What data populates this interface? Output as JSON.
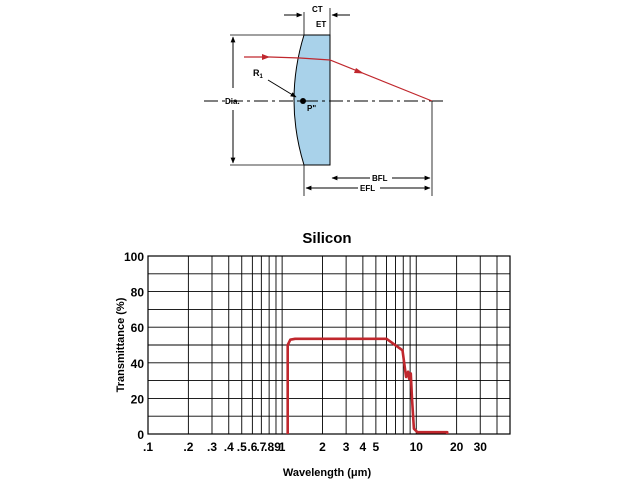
{
  "lens_diagram": {
    "labels": {
      "ct": "CT",
      "et": "ET",
      "r1": "R",
      "r1_sub": "1",
      "dia": "Dia.",
      "principal_point": "P\"",
      "bfl": "BFL",
      "efl": "EFL"
    },
    "colors": {
      "lens_fill": "#a9d2ea",
      "ray": "#c0272d",
      "line": "#000000"
    }
  },
  "chart_data": {
    "type": "line",
    "title": "Silicon",
    "xlabel": "Wavelength (μm)",
    "ylabel": "Transmittance (%)",
    "x_scale": "log",
    "xlim": [
      0.1,
      50
    ],
    "ylim": [
      0,
      100
    ],
    "x_tick_labels": [
      {
        "value": 0.1,
        "label": ".1"
      },
      {
        "value": 0.2,
        "label": ".2"
      },
      {
        "value": 0.3,
        "label": ".3"
      },
      {
        "value": 0.4,
        "label": ".4"
      },
      {
        "value": 0.5,
        "label": ".5"
      },
      {
        "value": 0.6,
        "label": ".6"
      },
      {
        "value": 0.7,
        "label": ".7"
      },
      {
        "value": 0.8,
        "label": ".8"
      },
      {
        "value": 0.9,
        "label": ".9"
      },
      {
        "value": 1,
        "label": "1"
      },
      {
        "value": 2,
        "label": "2"
      },
      {
        "value": 3,
        "label": "3"
      },
      {
        "value": 4,
        "label": "4"
      },
      {
        "value": 5,
        "label": "5"
      },
      {
        "value": 10,
        "label": "10"
      },
      {
        "value": 20,
        "label": "20"
      },
      {
        "value": 30,
        "label": "30"
      }
    ],
    "y_tick_labels": [
      {
        "value": 0,
        "label": "0"
      },
      {
        "value": 20,
        "label": "20"
      },
      {
        "value": 40,
        "label": "40"
      },
      {
        "value": 60,
        "label": "60"
      },
      {
        "value": 80,
        "label": "80"
      },
      {
        "value": 100,
        "label": "100"
      }
    ],
    "grid_x": [
      0.1,
      0.2,
      0.3,
      0.4,
      0.5,
      0.6,
      0.7,
      0.8,
      0.9,
      1,
      2,
      3,
      4,
      5,
      6,
      7,
      8,
      9,
      10,
      20,
      30,
      40,
      50
    ],
    "grid_y": [
      0,
      10,
      20,
      30,
      40,
      50,
      60,
      70,
      80,
      90,
      100
    ],
    "grid": true,
    "series_color": "#c0272d",
    "series": [
      {
        "x": [
          1.1,
          1.1,
          1.15,
          1.25,
          6.0,
          7.9,
          8.4,
          8.7,
          8.85,
          9.1,
          9.3,
          9.6,
          10.2,
          10.6,
          17.0,
          17.0
        ],
        "y": [
          0,
          50,
          53,
          53.5,
          53.5,
          47,
          32,
          35,
          31,
          34,
          20,
          3,
          1,
          1,
          1,
          0
        ]
      }
    ]
  }
}
